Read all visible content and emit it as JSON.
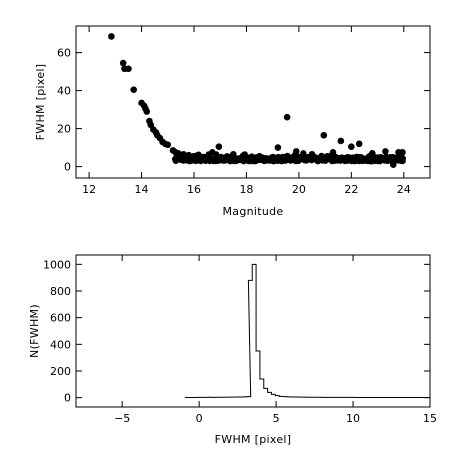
{
  "chart_data": [
    {
      "type": "scatter",
      "title": "",
      "xlabel": "Magnitude",
      "ylabel": "FWHM [pixel]",
      "xlim": [
        11.5,
        25
      ],
      "ylim": [
        -6,
        74
      ],
      "xticks": [
        12,
        14,
        16,
        18,
        20,
        22,
        24
      ],
      "yticks": [
        0,
        20,
        40,
        60
      ],
      "grid": false,
      "points": [
        [
          12.85,
          68.5
        ],
        [
          13.3,
          54.5
        ],
        [
          13.35,
          51.5
        ],
        [
          13.5,
          51.5
        ],
        [
          13.7,
          40.5
        ],
        [
          14.0,
          33.5
        ],
        [
          14.1,
          32.0
        ],
        [
          14.15,
          30.5
        ],
        [
          14.2,
          29.0
        ],
        [
          14.3,
          24.0
        ],
        [
          14.35,
          22.0
        ],
        [
          14.45,
          19.5
        ],
        [
          14.55,
          18.0
        ],
        [
          14.6,
          16.5
        ],
        [
          14.7,
          15.0
        ],
        [
          14.8,
          13.0
        ],
        [
          14.9,
          12.0
        ],
        [
          15.0,
          11.5
        ],
        [
          15.2,
          8.5
        ],
        [
          15.3,
          7.5
        ],
        [
          15.4,
          7.0
        ],
        [
          15.6,
          6.5
        ],
        [
          15.8,
          6.0
        ],
        [
          16.0,
          5.5
        ],
        [
          16.2,
          5.0
        ],
        [
          16.5,
          4.5
        ],
        [
          16.7,
          7.5
        ],
        [
          16.95,
          10.5
        ],
        [
          17.5,
          6.5
        ],
        [
          18.5,
          5.5
        ],
        [
          19.2,
          10.0
        ],
        [
          19.55,
          26.0
        ],
        [
          19.9,
          8.0
        ],
        [
          20.5,
          6.5
        ],
        [
          20.95,
          16.5
        ],
        [
          21.3,
          7.5
        ],
        [
          21.6,
          13.5
        ],
        [
          22.0,
          10.5
        ],
        [
          22.3,
          12.0
        ],
        [
          22.8,
          7.0
        ],
        [
          23.3,
          8.0
        ],
        [
          23.8,
          7.5
        ],
        [
          23.95,
          7.5
        ],
        [
          23.6,
          1.0
        ],
        [
          23.9,
          5.5
        ]
      ],
      "band": {
        "x_start": 15.3,
        "x_end": 23.95,
        "step": 0.06,
        "center": 4.0,
        "spread": 1.2
      }
    },
    {
      "type": "histogram",
      "title": "",
      "xlabel": "FWHM [pixel]",
      "ylabel": "N(FWHM)",
      "xlim": [
        -8,
        15
      ],
      "ylim": [
        -70,
        1070
      ],
      "xticks": [
        -5,
        0,
        5,
        10,
        15
      ],
      "yticks": [
        0,
        200,
        400,
        600,
        800,
        1000
      ],
      "grid": false,
      "bin_width": 0.25,
      "bins": [
        [
          -0.9,
          1
        ],
        [
          -0.65,
          1
        ],
        [
          -0.4,
          1
        ],
        [
          -0.15,
          2
        ],
        [
          0.1,
          2
        ],
        [
          0.35,
          2
        ],
        [
          0.6,
          3
        ],
        [
          0.85,
          2
        ],
        [
          1.1,
          3
        ],
        [
          1.35,
          3
        ],
        [
          1.6,
          3
        ],
        [
          1.85,
          4
        ],
        [
          2.1,
          4
        ],
        [
          2.35,
          5
        ],
        [
          2.6,
          5
        ],
        [
          2.85,
          6
        ],
        [
          3.1,
          8
        ],
        [
          3.2,
          880
        ],
        [
          3.45,
          1000
        ],
        [
          3.7,
          350
        ],
        [
          3.95,
          140
        ],
        [
          4.2,
          70
        ],
        [
          4.45,
          40
        ],
        [
          4.7,
          25
        ],
        [
          4.95,
          15
        ],
        [
          5.2,
          10
        ],
        [
          5.45,
          8
        ],
        [
          5.7,
          6
        ],
        [
          5.95,
          5
        ],
        [
          6.2,
          5
        ],
        [
          6.45,
          4
        ],
        [
          6.7,
          4
        ],
        [
          6.95,
          3
        ],
        [
          7.2,
          3
        ],
        [
          7.45,
          3
        ],
        [
          7.7,
          3
        ],
        [
          7.95,
          2
        ],
        [
          8.2,
          2
        ],
        [
          8.45,
          2
        ],
        [
          8.7,
          2
        ],
        [
          8.95,
          2
        ],
        [
          9.2,
          2
        ],
        [
          9.45,
          2
        ],
        [
          9.7,
          2
        ],
        [
          9.95,
          2
        ],
        [
          10.2,
          1
        ],
        [
          10.45,
          1
        ],
        [
          10.7,
          1
        ],
        [
          10.95,
          1
        ],
        [
          11.2,
          1
        ],
        [
          11.45,
          1
        ],
        [
          11.7,
          1
        ],
        [
          11.95,
          1
        ],
        [
          12.2,
          1
        ],
        [
          12.45,
          1
        ],
        [
          12.7,
          1
        ],
        [
          12.95,
          1
        ],
        [
          13.2,
          1
        ],
        [
          13.45,
          1
        ],
        [
          13.7,
          1
        ],
        [
          13.95,
          1
        ],
        [
          14.2,
          1
        ],
        [
          14.45,
          1
        ],
        [
          14.7,
          1
        ]
      ]
    }
  ]
}
